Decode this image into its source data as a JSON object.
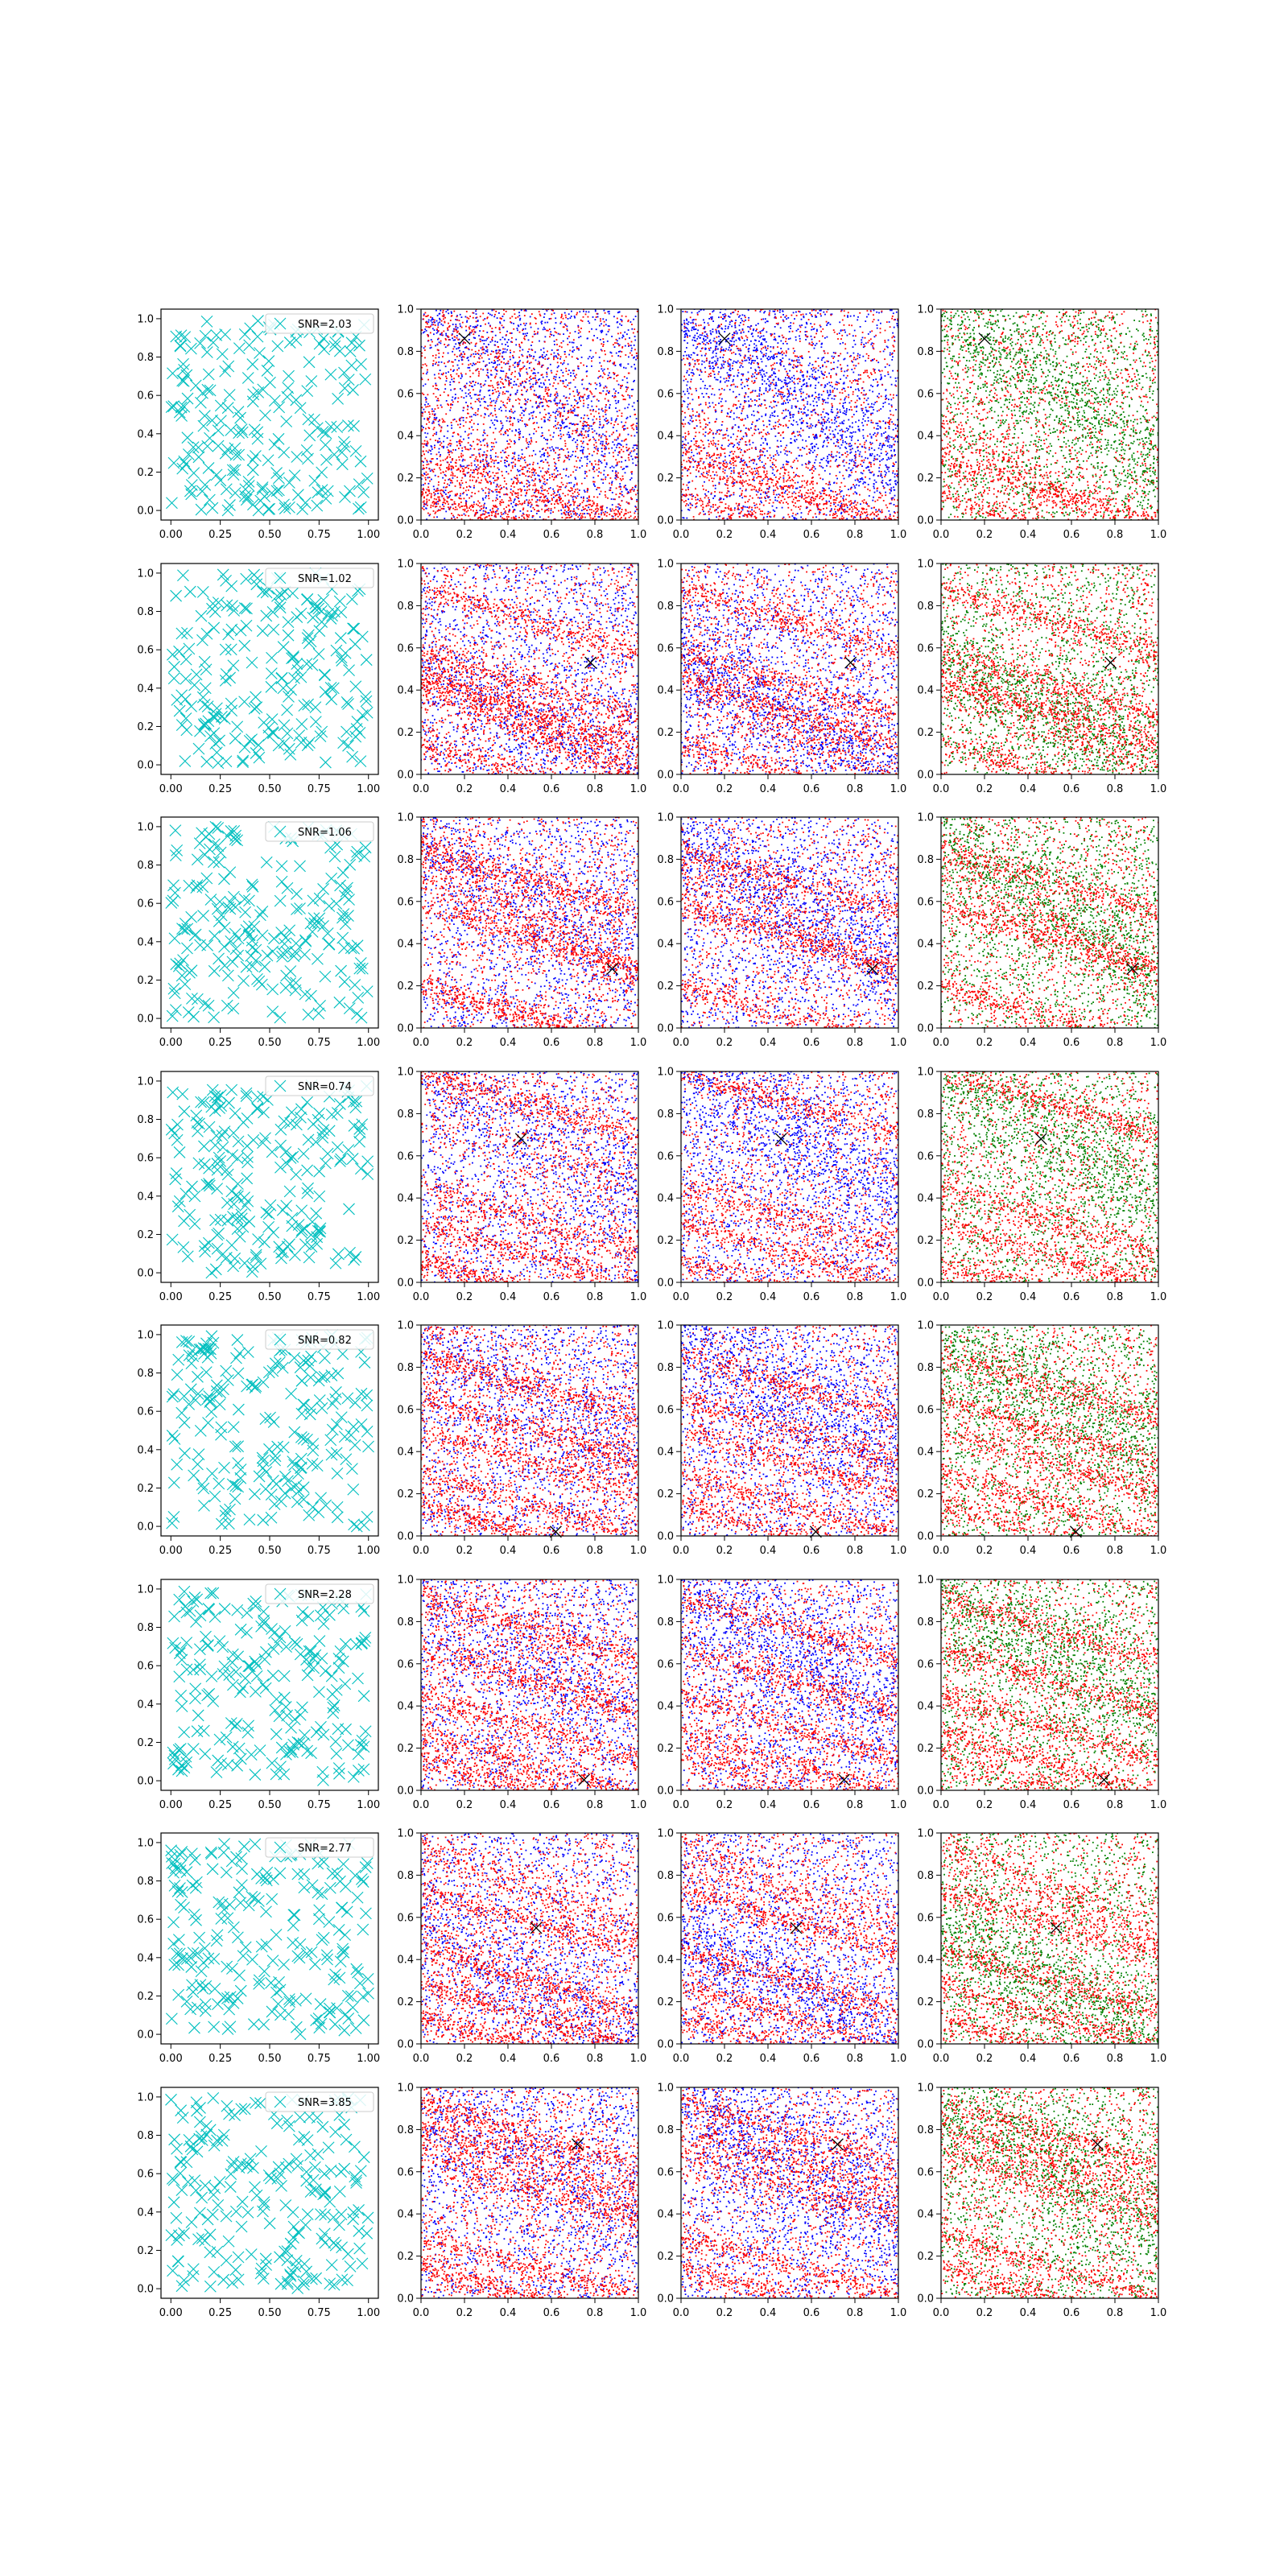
{
  "colors": {
    "cyan": "#00bfbf",
    "red": "#ff0000",
    "blue": "#0000ff",
    "green": "#008000",
    "black": "#000000"
  },
  "chart_data": {
    "type": "scatter",
    "layout": {
      "rows": 8,
      "cols": 4
    },
    "xlim": [
      0.0,
      1.0
    ],
    "ylim": [
      0.0,
      1.0
    ],
    "grid": false,
    "col0_xticks": [
      "0.00",
      "0.25",
      "0.50",
      "0.75",
      "1.00"
    ],
    "col0_yticks": [
      "0.0",
      "0.2",
      "0.4",
      "0.6",
      "0.8",
      "1.0"
    ],
    "xticks": [
      "0.0",
      "0.2",
      "0.4",
      "0.6",
      "0.8",
      "1.0"
    ],
    "yticks": [
      "0.0",
      "0.2",
      "0.4",
      "0.6",
      "0.8",
      "1.0"
    ],
    "legend_placement": "top-right",
    "rows": [
      {
        "snr_label": "SNR=2.03",
        "marker": [
          0.2,
          0.86
        ],
        "bands": [
          {
            "c": 0.44,
            "s": 0.53,
            "w": 0.07
          },
          {
            "c": 0.28,
            "s": 0.3,
            "w": 0.04
          },
          {
            "c": 0.12,
            "s": 0.3,
            "w": 0.03
          }
        ],
        "blob": {
          "c": 1.0,
          "s": 0.75,
          "w": 0.12
        }
      },
      {
        "snr_label": "SNR=1.02",
        "marker": [
          0.78,
          0.53
        ],
        "bands": [
          {
            "c": 0.88,
            "s": 0.3,
            "w": 0.03
          },
          {
            "c": 0.58,
            "s": 0.3,
            "w": 0.03
          },
          {
            "c": 0.45,
            "s": 0.3,
            "w": 0.03
          },
          {
            "c": 0.15,
            "s": 0.3,
            "w": 0.03
          },
          {
            "c": 0.46,
            "s": 0.45,
            "w": 0.06
          }
        ],
        "blob": {
          "c": 0.55,
          "s": 0.55,
          "w": 0.12
        }
      },
      {
        "snr_label": "SNR=1.06",
        "marker": [
          0.88,
          0.28
        ],
        "bands": [
          {
            "c": 0.85,
            "s": 0.3,
            "w": 0.03
          },
          {
            "c": 0.58,
            "s": 0.3,
            "w": 0.03
          },
          {
            "c": 0.78,
            "s": 0.55,
            "w": 0.07
          },
          {
            "c": 0.2,
            "s": 0.3,
            "w": 0.03
          }
        ],
        "blob": {
          "c": 0.9,
          "s": 0.6,
          "w": 0.12
        }
      },
      {
        "snr_label": "SNR=0.74",
        "marker": [
          0.46,
          0.68
        ],
        "bands": [
          {
            "c": 1.0,
            "s": 0.3,
            "w": 0.03
          },
          {
            "c": 0.45,
            "s": 0.3,
            "w": 0.04
          },
          {
            "c": 0.28,
            "s": 0.3,
            "w": 0.03
          },
          {
            "c": 0.1,
            "s": 0.3,
            "w": 0.03
          }
        ],
        "blob": {
          "c": 1.0,
          "s": 0.6,
          "w": 0.14
        }
      },
      {
        "snr_label": "SNR=0.82",
        "marker": [
          0.62,
          0.02
        ],
        "bands": [
          {
            "c": 0.86,
            "s": 0.3,
            "w": 0.03
          },
          {
            "c": 0.65,
            "s": 0.3,
            "w": 0.03
          },
          {
            "c": 0.5,
            "s": 0.3,
            "w": 0.03
          },
          {
            "c": 0.3,
            "s": 0.3,
            "w": 0.03
          },
          {
            "c": 0.15,
            "s": 0.3,
            "w": 0.03
          }
        ],
        "blob": {
          "c": 0.9,
          "s": 0.5,
          "w": 0.15
        }
      },
      {
        "snr_label": "SNR=2.28",
        "marker": [
          0.75,
          0.05
        ],
        "bands": [
          {
            "c": 0.92,
            "s": 0.3,
            "w": 0.03
          },
          {
            "c": 0.67,
            "s": 0.3,
            "w": 0.03
          },
          {
            "c": 0.45,
            "s": 0.3,
            "w": 0.03
          },
          {
            "c": 0.28,
            "s": 0.3,
            "w": 0.03
          },
          {
            "c": 0.16,
            "s": 0.3,
            "w": 0.04
          }
        ],
        "blob": {
          "c": 0.9,
          "s": 0.5,
          "w": 0.15
        }
      },
      {
        "snr_label": "SNR=2.77",
        "marker": [
          0.53,
          0.55
        ],
        "bands": [
          {
            "c": 0.93,
            "s": 0.4,
            "w": 0.05
          },
          {
            "c": 0.73,
            "s": 0.3,
            "w": 0.03
          },
          {
            "c": 0.45,
            "s": 0.3,
            "w": 0.03
          },
          {
            "c": 0.28,
            "s": 0.3,
            "w": 0.03
          },
          {
            "c": 0.13,
            "s": 0.3,
            "w": 0.03
          }
        ],
        "blob": {
          "c": 0.55,
          "s": 0.55,
          "w": 0.12
        }
      },
      {
        "snr_label": "SNR=3.85",
        "marker": [
          0.72,
          0.73
        ],
        "bands": [
          {
            "c": 0.93,
            "s": 0.3,
            "w": 0.03
          },
          {
            "c": 0.8,
            "s": 0.3,
            "w": 0.04
          },
          {
            "c": 0.68,
            "s": 0.3,
            "w": 0.04
          },
          {
            "c": 0.3,
            "s": 0.3,
            "w": 0.03
          },
          {
            "c": 0.15,
            "s": 0.3,
            "w": 0.03
          }
        ],
        "blob": {
          "c": 0.95,
          "s": 0.6,
          "w": 0.15
        }
      }
    ]
  }
}
